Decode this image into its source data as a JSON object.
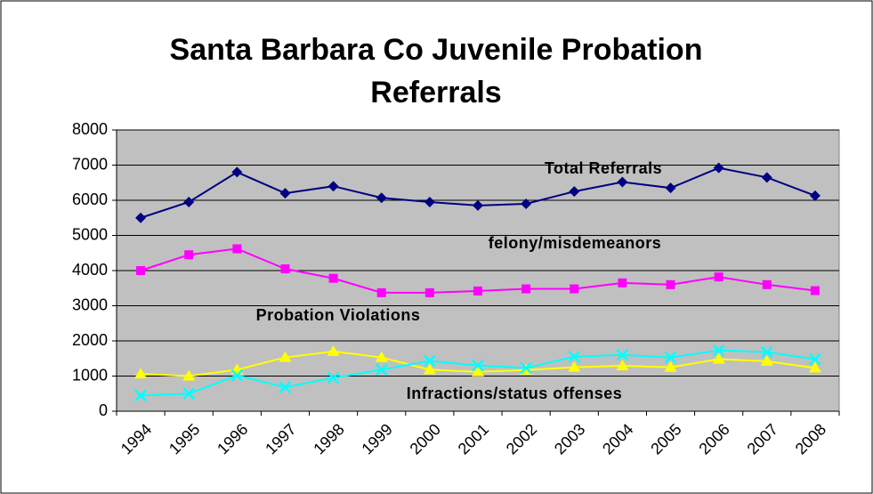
{
  "chart_data": {
    "type": "line",
    "title": "Santa Barbara Co Juvenile Probation Referrals",
    "categories": [
      "1994",
      "1995",
      "1996",
      "1997",
      "1998",
      "1999",
      "2000",
      "2001",
      "2002",
      "2003",
      "2004",
      "2005",
      "2006",
      "2007",
      "2008"
    ],
    "ylim": [
      0,
      8000
    ],
    "yticks": [
      0,
      1000,
      2000,
      3000,
      4000,
      5000,
      6000,
      7000,
      8000
    ],
    "grid": true,
    "series": [
      {
        "name": "Total Referrals",
        "color": "#000080",
        "marker": "diamond",
        "values": [
          5500,
          5950,
          6800,
          6200,
          6400,
          6070,
          5950,
          5850,
          5900,
          6250,
          6520,
          6350,
          6920,
          6650,
          6130
        ]
      },
      {
        "name": "felony/misdemeanors",
        "color": "#ff00ff",
        "marker": "square",
        "values": [
          4000,
          4450,
          4620,
          4050,
          3780,
          3370,
          3370,
          3420,
          3480,
          3480,
          3650,
          3600,
          3820,
          3600,
          3430
        ]
      },
      {
        "name": "Probation Violations",
        "color": "#ffff00",
        "marker": "triangle",
        "values": [
          1060,
          1000,
          1180,
          1530,
          1700,
          1530,
          1180,
          1120,
          1170,
          1250,
          1290,
          1250,
          1480,
          1420,
          1230
        ]
      },
      {
        "name": "Infractions/status offenses",
        "color": "#00ffff",
        "marker": "x",
        "values": [
          450,
          500,
          1020,
          680,
          950,
          1180,
          1430,
          1300,
          1230,
          1550,
          1600,
          1530,
          1730,
          1680,
          1480
        ]
      }
    ]
  }
}
